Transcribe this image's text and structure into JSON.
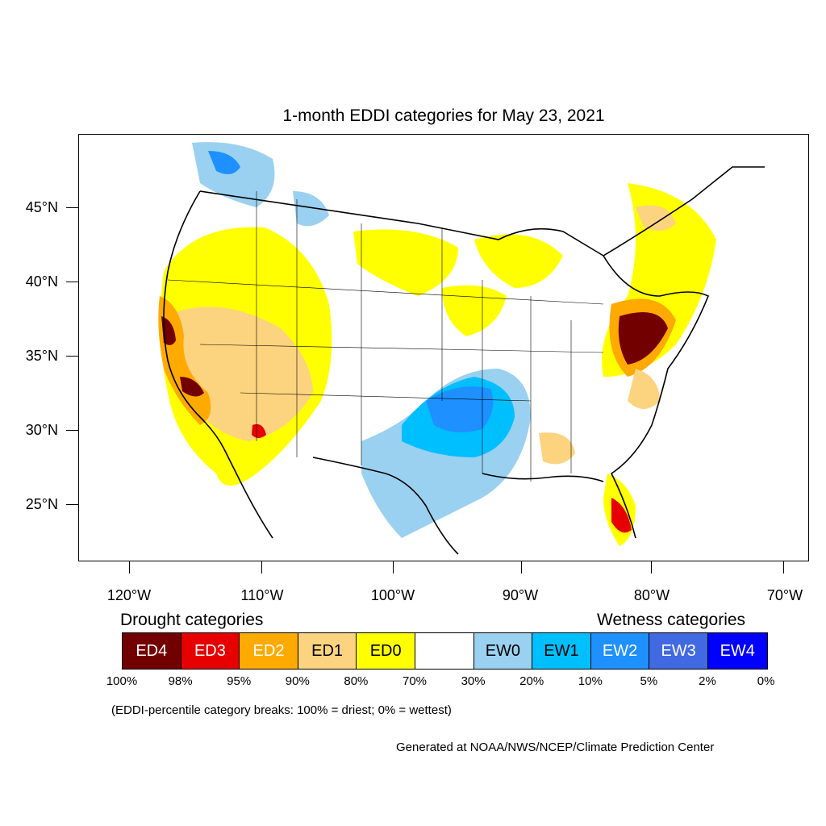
{
  "title": "1-month EDDI categories for May 23, 2021",
  "lat_labels": [
    "45°N",
    "40°N",
    "35°N",
    "30°N",
    "25°N"
  ],
  "lon_labels": [
    "120°W",
    "110°W",
    "100°W",
    "90°W",
    "80°W",
    "70°W"
  ],
  "legend": {
    "drought_title": "Drought categories",
    "wetness_title": "Wetness categories",
    "categories": [
      {
        "label": "ED4",
        "color": "#730000",
        "text_color": "#ffffff"
      },
      {
        "label": "ED3",
        "color": "#e60000",
        "text_color": "#ffffff"
      },
      {
        "label": "ED2",
        "color": "#ffaa00",
        "text_color": "#ffffff"
      },
      {
        "label": "ED1",
        "color": "#fcd37f",
        "text_color": "#000000"
      },
      {
        "label": "ED0",
        "color": "#ffff00",
        "text_color": "#000000"
      },
      {
        "label": "",
        "color": "#ffffff",
        "text_color": "#000000"
      },
      {
        "label": "EW0",
        "color": "#9ad1f0",
        "text_color": "#000000"
      },
      {
        "label": "EW1",
        "color": "#00bfff",
        "text_color": "#000000"
      },
      {
        "label": "EW2",
        "color": "#1e90ff",
        "text_color": "#ffffff"
      },
      {
        "label": "EW3",
        "color": "#4169e1",
        "text_color": "#ffffff"
      },
      {
        "label": "EW4",
        "color": "#0000ff",
        "text_color": "#ffffff"
      }
    ],
    "breaks": [
      "100%",
      "98%",
      "95%",
      "90%",
      "80%",
      "70%",
      "30%",
      "20%",
      "10%",
      "5%",
      "2%",
      "0%"
    ]
  },
  "caption": "(EDDI-percentile category breaks: 100% = driest; 0% = wettest)",
  "credit": "Generated at NOAA/NWS/NCEP/Climate Prediction Center"
}
